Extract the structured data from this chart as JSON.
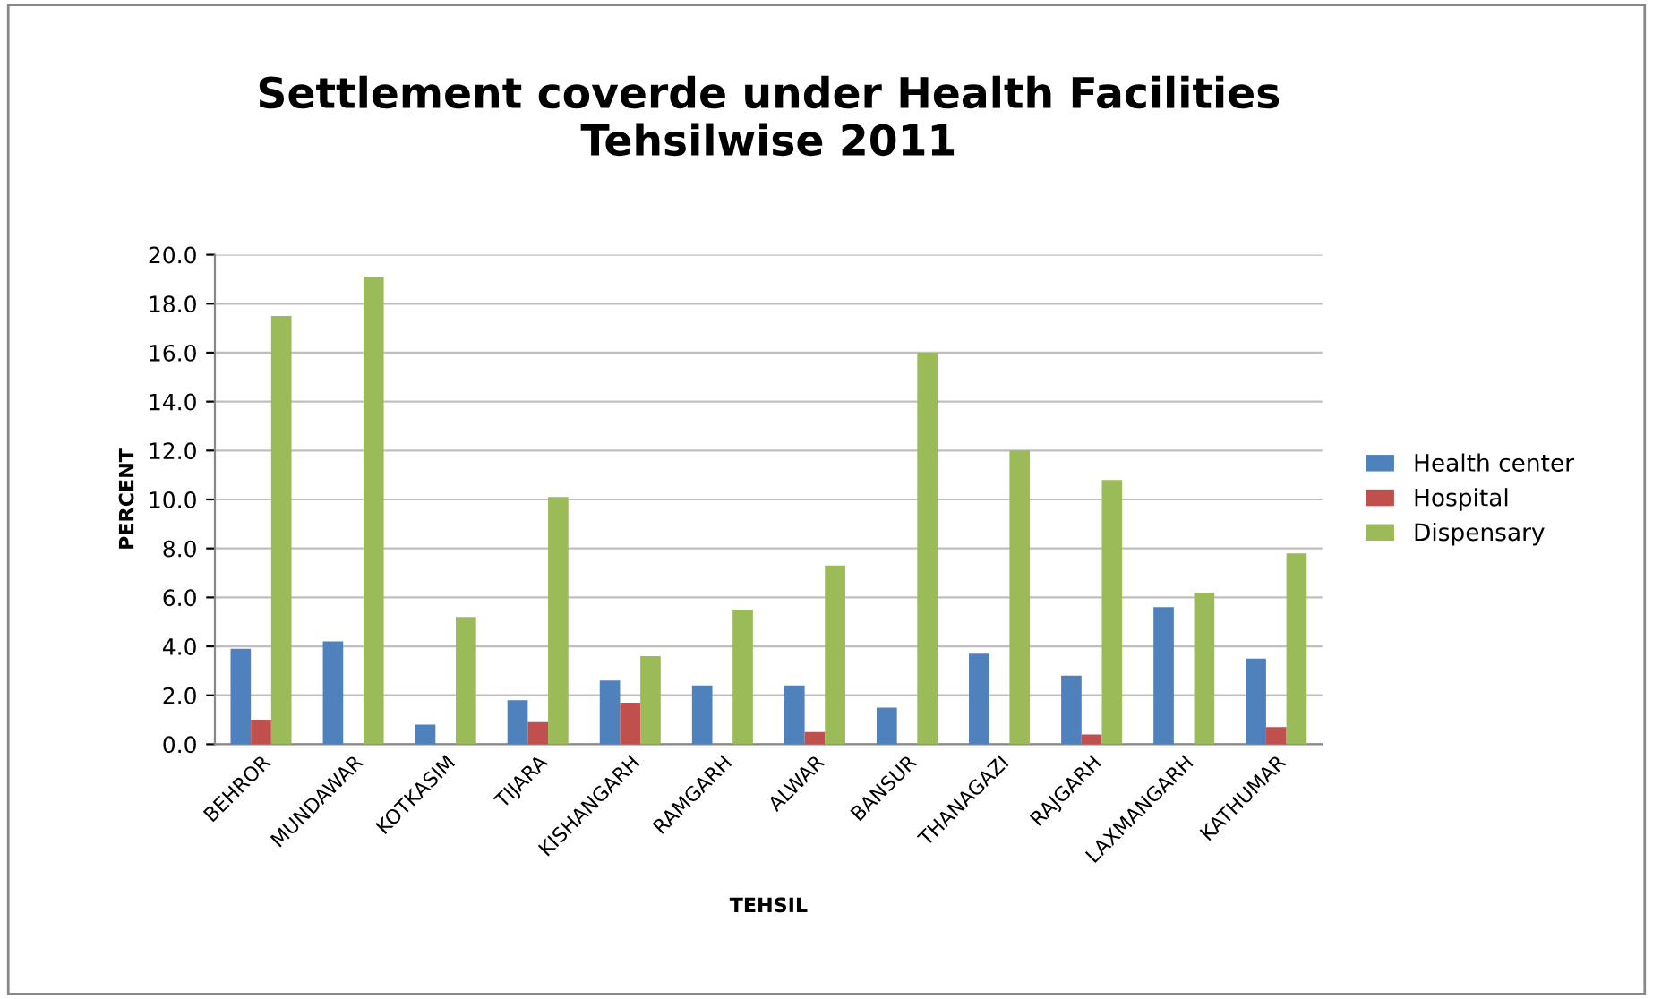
{
  "chart_data": {
    "type": "bar",
    "title": "Settlement coverde under Health Facilities\nTehsilwise 2011",
    "xlabel": "TEHSIL",
    "ylabel": "PERCENT",
    "categories": [
      "BEHROR",
      "MUNDAWAR",
      "KOTKASIM",
      "TIJARA",
      "KISHANGARH",
      "RAMGARH",
      "ALWAR",
      "BANSUR",
      "THANAGAZI",
      "RAJGARH",
      "LAXMANGARH",
      "KATHUMAR"
    ],
    "series": [
      {
        "name": "Health center",
        "color": "#4f81bd",
        "values": [
          3.9,
          4.2,
          0.8,
          1.8,
          2.6,
          2.4,
          2.4,
          1.5,
          3.7,
          2.8,
          5.6,
          3.5
        ]
      },
      {
        "name": "Hospital",
        "color": "#c0504d",
        "values": [
          1.0,
          0,
          0,
          0.9,
          1.7,
          0,
          0.5,
          0,
          0,
          0.4,
          0,
          0.7
        ]
      },
      {
        "name": "Dispensary",
        "color": "#9bbb59",
        "values": [
          17.5,
          19.1,
          5.2,
          10.1,
          3.6,
          5.5,
          7.3,
          16.0,
          12.0,
          10.8,
          6.2,
          7.8
        ]
      }
    ],
    "ylim": [
      0,
      20
    ],
    "yticks": [
      {
        "value": 0,
        "label": "0.0"
      },
      {
        "value": 2,
        "label": "2.0"
      },
      {
        "value": 4,
        "label": "4.0"
      },
      {
        "value": 6,
        "label": "6.0"
      },
      {
        "value": 8,
        "label": "8.0"
      },
      {
        "value": 10,
        "label": "10.0"
      },
      {
        "value": 12,
        "label": "12.0"
      },
      {
        "value": 14,
        "label": "14.0"
      },
      {
        "value": 16,
        "label": "16.0"
      },
      {
        "value": 18,
        "label": "18.0"
      },
      {
        "value": 20,
        "label": "20.0"
      }
    ],
    "grid": "y",
    "legend": "right"
  }
}
